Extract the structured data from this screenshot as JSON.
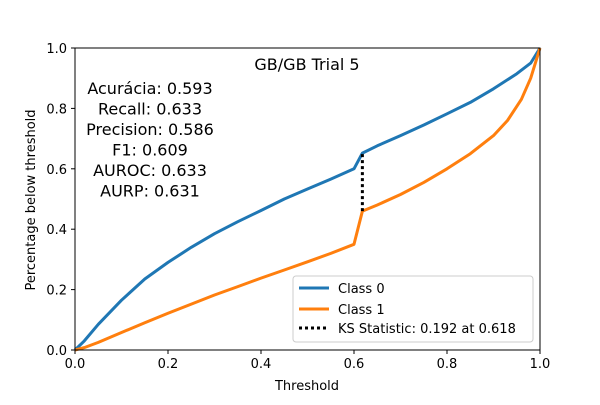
{
  "chart_data": {
    "type": "line",
    "title": "GB/GB Trial 5",
    "xlabel": "Threshold",
    "ylabel": "Percentage below threshold",
    "xlim": [
      0.0,
      1.0
    ],
    "ylim": [
      0.0,
      1.0
    ],
    "x_ticks": [
      "0.0",
      "0.2",
      "0.4",
      "0.6",
      "0.8",
      "1.0"
    ],
    "y_ticks": [
      "0.0",
      "0.2",
      "0.4",
      "0.6",
      "0.8",
      "1.0"
    ],
    "grid": false,
    "legend_position": "bottom-right",
    "metrics": [
      "Acurácia: 0.593",
      "Recall: 0.633",
      "Precision: 0.586",
      "F1: 0.609",
      "AUROC: 0.633",
      "AURP: 0.631"
    ],
    "series": [
      {
        "name": "Class 0",
        "color": "#1f77b4",
        "x": [
          0.0,
          0.02,
          0.05,
          0.1,
          0.15,
          0.2,
          0.25,
          0.3,
          0.35,
          0.4,
          0.45,
          0.5,
          0.55,
          0.6,
          0.618,
          0.65,
          0.7,
          0.75,
          0.8,
          0.85,
          0.9,
          0.95,
          0.98,
          1.0
        ],
        "y": [
          0.0,
          0.03,
          0.085,
          0.165,
          0.235,
          0.29,
          0.34,
          0.385,
          0.425,
          0.462,
          0.5,
          0.533,
          0.566,
          0.6,
          0.652,
          0.676,
          0.71,
          0.745,
          0.782,
          0.82,
          0.865,
          0.915,
          0.95,
          1.0
        ]
      },
      {
        "name": "Class 1",
        "color": "#ff7f0e",
        "x": [
          0.0,
          0.02,
          0.05,
          0.1,
          0.15,
          0.2,
          0.25,
          0.3,
          0.35,
          0.4,
          0.45,
          0.5,
          0.55,
          0.6,
          0.618,
          0.65,
          0.7,
          0.75,
          0.8,
          0.85,
          0.9,
          0.93,
          0.96,
          0.98,
          1.0
        ],
        "y": [
          0.0,
          0.008,
          0.025,
          0.058,
          0.09,
          0.122,
          0.152,
          0.182,
          0.21,
          0.238,
          0.265,
          0.292,
          0.32,
          0.35,
          0.46,
          0.48,
          0.515,
          0.555,
          0.6,
          0.65,
          0.71,
          0.76,
          0.83,
          0.9,
          1.0
        ]
      }
    ],
    "ks_statistic": {
      "label": "KS Statistic: 0.192 at 0.618",
      "x": 0.618,
      "y_low": 0.46,
      "y_high": 0.652
    }
  }
}
